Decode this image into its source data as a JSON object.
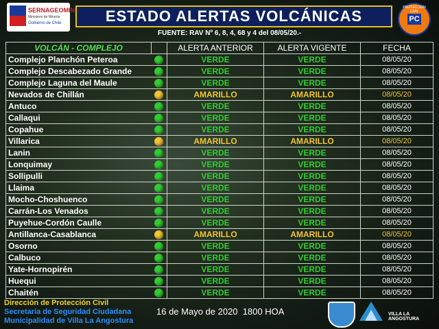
{
  "header": {
    "title": "ESTADO ALERTAS VOLCÁNICAS",
    "source": "FUENTE: RAV Nº 6, 8, 4, 68 y 4  del 08/05/20.-",
    "left_logo": {
      "name": "SERNAGEOMIN",
      "ministry": "Ministerio de Minería",
      "government": "Gobierno de Chile"
    },
    "right_logo": {
      "initials": "PC",
      "ring": "PROTECCION CIVIL"
    }
  },
  "table": {
    "columns": [
      "VOLCÁN - COMPLEJO",
      "ALERTA ANTERIOR",
      "ALERTA VIGENTE",
      "FECHA"
    ],
    "rows": [
      {
        "name": "Complejo Planchón   Peteroa",
        "previous": "VERDE",
        "current": "VERDE",
        "date": "08/05/20",
        "color": "#33cc33"
      },
      {
        "name": "Complejo Descabezado Grande",
        "previous": "VERDE",
        "current": "VERDE",
        "date": "08/05/20",
        "color": "#33cc33"
      },
      {
        "name": "Complejo Laguna del Maule",
        "previous": "VERDE",
        "current": "VERDE",
        "date": "08/05/20",
        "color": "#33cc33"
      },
      {
        "name": "Nevados de Chillán",
        "previous": "AMARILLO",
        "current": "AMARILLO",
        "date": "08/05/20",
        "color": "#f2c531"
      },
      {
        "name": "Antuco",
        "previous": "VERDE",
        "current": "VERDE",
        "date": "08/05/20",
        "color": "#33cc33"
      },
      {
        "name": "Callaqui",
        "previous": "VERDE",
        "current": "VERDE",
        "date": "08/05/20",
        "color": "#33cc33"
      },
      {
        "name": "Copahue",
        "previous": "VERDE",
        "current": "VERDE",
        "date": "08/05/20",
        "color": "#33cc33"
      },
      {
        "name": "Villarica",
        "previous": "AMARILLO",
        "current": "AMARILLO",
        "date": "08/05/20",
        "color": "#f2c531"
      },
      {
        "name": "Lanin",
        "previous": "VERDE",
        "current": "VERDE",
        "date": "08/05/20",
        "color": "#33cc33"
      },
      {
        "name": "Lonquimay",
        "previous": "VERDE",
        "current": "VERDE",
        "date": "08/05/20",
        "color": "#33cc33"
      },
      {
        "name": "Sollipulli",
        "previous": "VERDE",
        "current": "VERDE",
        "date": "08/05/20",
        "color": "#33cc33"
      },
      {
        "name": "Llaima",
        "previous": "VERDE",
        "current": "VERDE",
        "date": "08/05/20",
        "color": "#33cc33"
      },
      {
        "name": "Mocho-Choshuenco",
        "previous": "VERDE",
        "current": "VERDE",
        "date": "08/05/20",
        "color": "#33cc33"
      },
      {
        "name": "Carrán-Los Venados",
        "previous": "VERDE",
        "current": "VERDE",
        "date": "08/05/20",
        "color": "#33cc33"
      },
      {
        "name": "Puyehue-Cordón Caulle",
        "previous": "VERDE",
        "current": "VERDE",
        "date": "08/05/20",
        "color": "#33cc33"
      },
      {
        "name": "Antillanca-Casablanca",
        "previous": "AMARILLO",
        "current": "AMARILLO",
        "date": "08/05/20",
        "color": "#f2c531"
      },
      {
        "name": "Osorno",
        "previous": "VERDE",
        "current": "VERDE",
        "date": "08/05/20",
        "color": "#33cc33"
      },
      {
        "name": "Calbuco",
        "previous": "VERDE",
        "current": "VERDE",
        "date": "08/05/20",
        "color": "#33cc33"
      },
      {
        "name": "Yate-Hornopirén",
        "previous": "VERDE",
        "current": "VERDE",
        "date": "08/05/20",
        "color": "#33cc33"
      },
      {
        "name": "Huequi",
        "previous": "VERDE",
        "current": "VERDE",
        "date": "08/05/20",
        "color": "#33cc33"
      },
      {
        "name": "Chaitén",
        "previous": "VERDE",
        "current": "VERDE",
        "date": "08/05/20",
        "color": "#33cc33"
      }
    ]
  },
  "footer": {
    "lines": [
      "Dirección de Protección Civil",
      "Secretaría de Seguridad Ciudadana",
      "Municipalidad de Villa La Angostura"
    ],
    "timestamp": "16 de Mayo de 2020  1800 HOA",
    "logo_text": "VILLA LA ANGOSTURA"
  }
}
